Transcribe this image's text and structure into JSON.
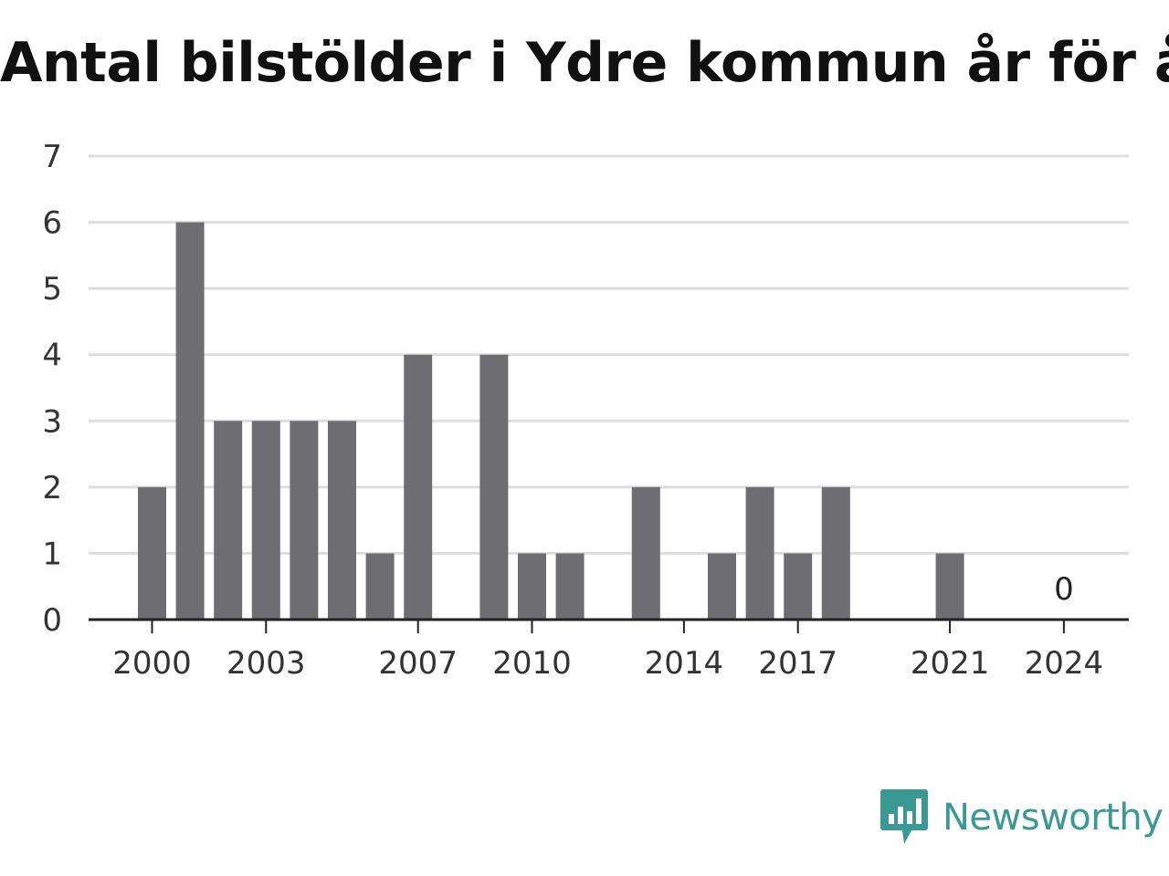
{
  "chart_data": {
    "type": "bar",
    "title": "Antal bilstölder i Ydre kommun år för år",
    "xlabel": "",
    "ylabel": "",
    "x": [
      2000,
      2001,
      2002,
      2003,
      2004,
      2005,
      2006,
      2007,
      2008,
      2009,
      2010,
      2011,
      2012,
      2013,
      2014,
      2015,
      2016,
      2017,
      2018,
      2019,
      2020,
      2021,
      2022,
      2023,
      2024
    ],
    "values": [
      2,
      6,
      3,
      3,
      3,
      3,
      1,
      4,
      0,
      4,
      1,
      1,
      0,
      2,
      0,
      1,
      2,
      1,
      2,
      0,
      0,
      1,
      0,
      0,
      0
    ],
    "x_ticks": [
      "2000",
      "2003",
      "2007",
      "2010",
      "2014",
      "2017",
      "2021",
      "2024"
    ],
    "y_ticks": [
      0,
      1,
      2,
      3,
      4,
      5,
      6,
      7
    ],
    "ylim": [
      0,
      7
    ],
    "grid": true,
    "bar_color": "#6e6d72",
    "annotations": [
      {
        "x": 2024,
        "text": "0"
      }
    ]
  },
  "branding": {
    "name": "Newsworthy",
    "icon": "newsworthy-logo-icon",
    "color": "#3a9a93"
  }
}
